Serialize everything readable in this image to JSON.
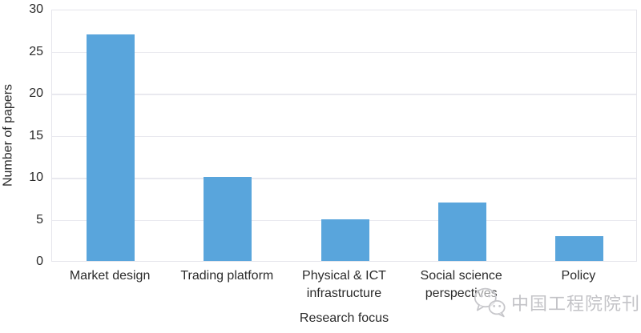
{
  "chart_data": {
    "type": "bar",
    "title": "",
    "categories": [
      "Market design",
      "Trading platform",
      "Physical & ICT\ninfrastructure",
      "Social science\nperspectives",
      "Policy"
    ],
    "values": [
      27,
      10,
      5,
      7,
      3
    ],
    "xlabel": "Research focus",
    "ylabel": "Number of papers",
    "ylim": [
      0,
      30
    ],
    "yticks": [
      0,
      5,
      10,
      15,
      20,
      25,
      30
    ],
    "grid": "horizontal",
    "legend": "none",
    "bar_color": "#59A5DC"
  },
  "colors": {
    "bar": "#59A5DC",
    "gridline": "#E9E9EF",
    "axis_text": "#2B2B2B",
    "watermark": "#C3C3C7"
  },
  "watermark": {
    "icon": "wechat-icon",
    "text": "中国工程院院刊"
  }
}
